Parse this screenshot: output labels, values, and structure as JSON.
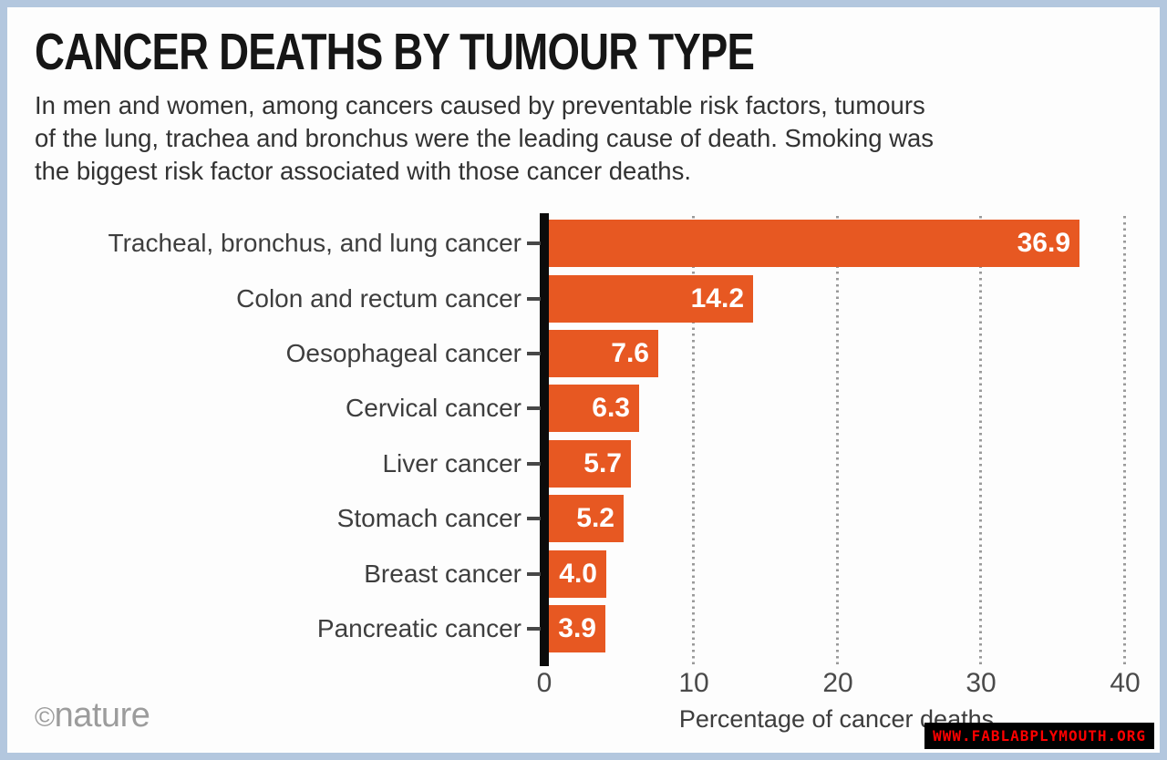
{
  "header": {
    "title": "CANCER DEATHS BY TUMOUR TYPE",
    "subtitle_lines": [
      "In men and women, among cancers caused by preventable risk factors, tumours",
      "of the lung, trachea and bronchus were the leading cause of death. Smoking was",
      "the biggest risk factor associated with those cancer deaths."
    ]
  },
  "chart_data": {
    "type": "bar",
    "orientation": "horizontal",
    "title": "CANCER DEATHS BY TUMOUR TYPE",
    "categories": [
      "Tracheal, bronchus, and lung cancer",
      "Colon and rectum cancer",
      "Oesophageal cancer",
      "Cervical cancer",
      "Liver cancer",
      "Stomach cancer",
      "Breast cancer",
      "Pancreatic cancer"
    ],
    "values": [
      36.9,
      14.2,
      7.6,
      6.3,
      5.7,
      5.2,
      4.0,
      3.9
    ],
    "value_labels": [
      "36.9",
      "14.2",
      "7.6",
      "6.3",
      "5.7",
      "5.2",
      "4.0",
      "3.9"
    ],
    "xlabel": "Percentage of cancer deaths",
    "ylabel": "",
    "xlim": [
      0,
      40
    ],
    "xticks": [
      0,
      10,
      20,
      30,
      40
    ],
    "grid": "vertical dotted gridlines at 10, 20, 30, 40",
    "legend": "none",
    "bar_color": "#e75822",
    "value_label_color": "#ffffff"
  },
  "footer": {
    "copyright_symbol": "©",
    "source_name": "nature"
  },
  "watermark": {
    "text": "WWW.FABLABPLYMOUTH.ORG"
  },
  "colors": {
    "frame_border": "#b3c7de",
    "background": "#fdfdfd",
    "bar": "#e75822",
    "axis": "#0b0b0b",
    "gridline": "#9a9a9a",
    "value_label": "#ffffff",
    "watermark_text": "#fe0000",
    "watermark_background": "#000000"
  }
}
